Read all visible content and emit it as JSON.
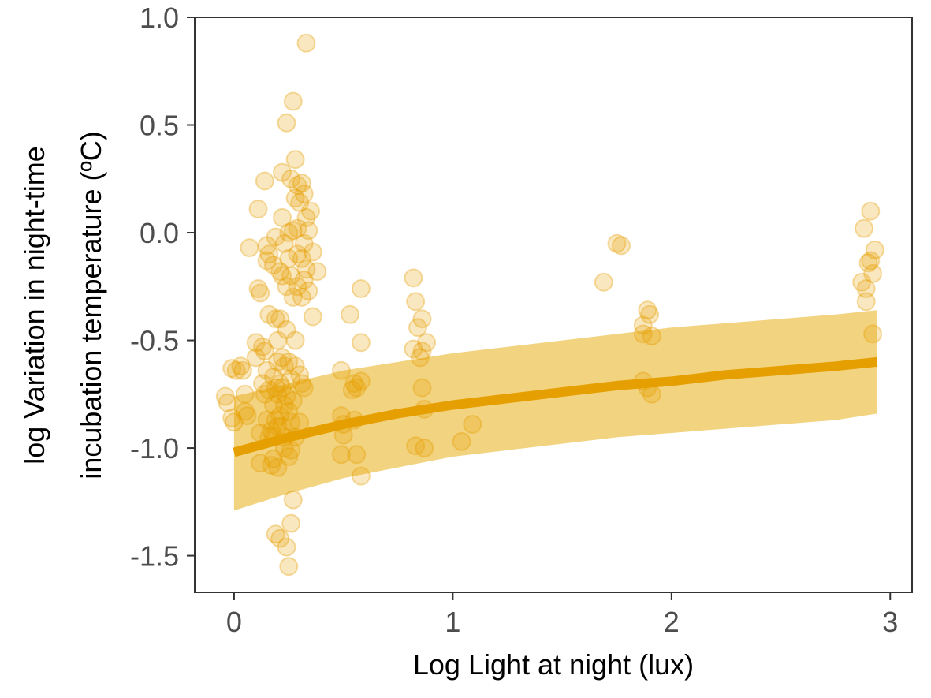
{
  "chart_data": {
    "type": "scatter",
    "xlabel": "Log Light at night (lux)",
    "ylabel_lines": [
      "log Variation in night-time",
      "incubation temperature (ºC)"
    ],
    "xlim": [
      -0.18,
      3.1
    ],
    "ylim": [
      -1.67,
      1.0
    ],
    "x_ticks": [
      0,
      1,
      2,
      3
    ],
    "x_tick_labels": [
      "0",
      "1",
      "2",
      "3"
    ],
    "y_ticks": [
      1.0,
      0.5,
      0.0,
      -0.5,
      -1.0,
      -1.5
    ],
    "y_tick_labels": [
      "1.0",
      "0.5",
      "0.0",
      "-0.5",
      "-1.0",
      "-1.5"
    ],
    "grid": false,
    "colors": {
      "point": "#E69F00",
      "ribbon": "#E6A800",
      "line": "#E69F00"
    },
    "points": [
      [
        -0.04,
        -0.76
      ],
      [
        -0.03,
        -0.79
      ],
      [
        -0.01,
        -0.86
      ],
      [
        0.0,
        -0.88
      ],
      [
        -0.01,
        -0.63
      ],
      [
        0.01,
        -0.64
      ],
      [
        0.03,
        -0.62
      ],
      [
        0.04,
        -0.64
      ],
      [
        0.05,
        -0.83
      ],
      [
        0.06,
        -0.85
      ],
      [
        0.05,
        -0.75
      ],
      [
        0.07,
        -0.07
      ],
      [
        0.1,
        -0.51
      ],
      [
        0.1,
        -0.58
      ],
      [
        0.11,
        0.11
      ],
      [
        0.11,
        -0.26
      ],
      [
        0.12,
        -0.28
      ],
      [
        0.12,
        -0.93
      ],
      [
        0.12,
        -1.07
      ],
      [
        0.13,
        -0.53
      ],
      [
        0.13,
        -0.7
      ],
      [
        0.14,
        0.24
      ],
      [
        0.14,
        -0.55
      ],
      [
        0.14,
        -0.75
      ],
      [
        0.15,
        -0.06
      ],
      [
        0.15,
        -0.13
      ],
      [
        0.15,
        -0.64
      ],
      [
        0.15,
        -0.87
      ],
      [
        0.16,
        -0.1
      ],
      [
        0.16,
        -0.38
      ],
      [
        0.16,
        -0.73
      ],
      [
        0.16,
        -0.95
      ],
      [
        0.17,
        -0.92
      ],
      [
        0.17,
        -1.08
      ],
      [
        0.18,
        -0.15
      ],
      [
        0.18,
        -0.67
      ],
      [
        0.18,
        -0.8
      ],
      [
        0.18,
        -0.95
      ],
      [
        0.18,
        -1.05
      ],
      [
        0.19,
        -0.02
      ],
      [
        0.19,
        -0.4
      ],
      [
        0.19,
        -0.72
      ],
      [
        0.19,
        -0.87
      ],
      [
        0.19,
        -1.4
      ],
      [
        0.2,
        -0.5
      ],
      [
        0.2,
        -0.6
      ],
      [
        0.2,
        -0.75
      ],
      [
        0.2,
        -0.9
      ],
      [
        0.2,
        -1.09
      ],
      [
        0.21,
        -0.18
      ],
      [
        0.21,
        -0.4
      ],
      [
        0.21,
        -0.7
      ],
      [
        0.21,
        -0.85
      ],
      [
        0.21,
        -1.42
      ],
      [
        0.22,
        0.28
      ],
      [
        0.22,
        0.07
      ],
      [
        0.22,
        -0.2
      ],
      [
        0.22,
        -0.58
      ],
      [
        0.22,
        -0.72
      ],
      [
        0.22,
        -0.9
      ],
      [
        0.23,
        -0.05
      ],
      [
        0.23,
        -0.62
      ],
      [
        0.23,
        -0.8
      ],
      [
        0.23,
        -0.95
      ],
      [
        0.23,
        -1.0
      ],
      [
        0.24,
        0.51
      ],
      [
        0.24,
        -0.25
      ],
      [
        0.24,
        -0.45
      ],
      [
        0.24,
        -0.76
      ],
      [
        0.24,
        -1.46
      ],
      [
        0.25,
        0.0
      ],
      [
        0.25,
        -0.12
      ],
      [
        0.25,
        -0.6
      ],
      [
        0.25,
        -0.83
      ],
      [
        0.25,
        -1.04
      ],
      [
        0.25,
        -1.55
      ],
      [
        0.26,
        0.25
      ],
      [
        0.26,
        -0.2
      ],
      [
        0.26,
        -0.68
      ],
      [
        0.26,
        -0.88
      ],
      [
        0.26,
        -1.01
      ],
      [
        0.26,
        -1.35
      ],
      [
        0.27,
        0.61
      ],
      [
        0.27,
        0.01
      ],
      [
        0.27,
        -0.3
      ],
      [
        0.27,
        -0.78
      ],
      [
        0.27,
        -1.24
      ],
      [
        0.28,
        0.34
      ],
      [
        0.28,
        0.16
      ],
      [
        0.28,
        -0.5
      ],
      [
        0.28,
        -0.62
      ],
      [
        0.28,
        -0.95
      ],
      [
        0.29,
        0.22
      ],
      [
        0.29,
        0.02
      ],
      [
        0.29,
        -0.1
      ],
      [
        0.29,
        -0.25
      ],
      [
        0.3,
        0.14
      ],
      [
        0.3,
        -0.66
      ],
      [
        0.3,
        -0.88
      ],
      [
        0.31,
        0.23
      ],
      [
        0.31,
        -0.12
      ],
      [
        0.31,
        -0.3
      ],
      [
        0.31,
        -0.7
      ],
      [
        0.32,
        0.18
      ],
      [
        0.32,
        -0.05
      ],
      [
        0.32,
        -0.22
      ],
      [
        0.32,
        -0.72
      ],
      [
        0.33,
        0.88
      ],
      [
        0.33,
        0.07
      ],
      [
        0.33,
        -0.17
      ],
      [
        0.34,
        0.01
      ],
      [
        0.34,
        -0.27
      ],
      [
        0.35,
        0.1
      ],
      [
        0.36,
        -0.09
      ],
      [
        0.36,
        -0.39
      ],
      [
        0.38,
        -0.18
      ],
      [
        0.49,
        -0.64
      ],
      [
        0.49,
        -0.85
      ],
      [
        0.49,
        -1.03
      ],
      [
        0.5,
        -0.94
      ],
      [
        0.5,
        -0.89
      ],
      [
        0.53,
        -0.38
      ],
      [
        0.54,
        -0.73
      ],
      [
        0.55,
        -0.7
      ],
      [
        0.55,
        -0.87
      ],
      [
        0.56,
        -0.72
      ],
      [
        0.56,
        -1.03
      ],
      [
        0.58,
        -0.26
      ],
      [
        0.58,
        -0.69
      ],
      [
        0.58,
        -0.51
      ],
      [
        0.58,
        -1.13
      ],
      [
        0.82,
        -0.21
      ],
      [
        0.82,
        -0.54
      ],
      [
        0.83,
        -0.32
      ],
      [
        0.83,
        -0.99
      ],
      [
        0.84,
        -0.44
      ],
      [
        0.85,
        -0.58
      ],
      [
        0.86,
        -0.4
      ],
      [
        0.86,
        -0.72
      ],
      [
        0.86,
        -0.55
      ],
      [
        0.87,
        -0.82
      ],
      [
        0.87,
        -1.0
      ],
      [
        0.88,
        -0.51
      ],
      [
        1.04,
        -0.97
      ],
      [
        1.09,
        -0.89
      ],
      [
        1.69,
        -0.23
      ],
      [
        1.75,
        -0.05
      ],
      [
        1.77,
        -0.06
      ],
      [
        1.87,
        -0.43
      ],
      [
        1.87,
        -0.47
      ],
      [
        1.87,
        -0.69
      ],
      [
        1.89,
        -0.72
      ],
      [
        1.89,
        -0.36
      ],
      [
        1.9,
        -0.38
      ],
      [
        1.91,
        -0.48
      ],
      [
        1.91,
        -0.75
      ],
      [
        2.87,
        -0.23
      ],
      [
        2.88,
        0.02
      ],
      [
        2.89,
        -0.26
      ],
      [
        2.89,
        -0.32
      ],
      [
        2.9,
        -0.14
      ],
      [
        2.91,
        0.1
      ],
      [
        2.91,
        -0.13
      ],
      [
        2.92,
        -0.19
      ],
      [
        2.92,
        -0.47
      ],
      [
        2.93,
        -0.08
      ]
    ],
    "fit_line": [
      [
        0.0,
        -1.02
      ],
      [
        0.25,
        -0.95
      ],
      [
        0.5,
        -0.89
      ],
      [
        0.75,
        -0.84
      ],
      [
        1.0,
        -0.8
      ],
      [
        1.25,
        -0.77
      ],
      [
        1.5,
        -0.74
      ],
      [
        1.75,
        -0.71
      ],
      [
        2.0,
        -0.69
      ],
      [
        2.25,
        -0.66
      ],
      [
        2.5,
        -0.64
      ],
      [
        2.75,
        -0.62
      ],
      [
        2.94,
        -0.6
      ]
    ],
    "fit_band_upper": [
      [
        0.0,
        -0.76
      ],
      [
        0.25,
        -0.7
      ],
      [
        0.5,
        -0.64
      ],
      [
        0.75,
        -0.6
      ],
      [
        1.0,
        -0.56
      ],
      [
        1.25,
        -0.53
      ],
      [
        1.5,
        -0.5
      ],
      [
        1.75,
        -0.47
      ],
      [
        2.0,
        -0.44
      ],
      [
        2.25,
        -0.42
      ],
      [
        2.5,
        -0.4
      ],
      [
        2.75,
        -0.38
      ],
      [
        2.94,
        -0.36
      ]
    ],
    "fit_band_lower": [
      [
        0.0,
        -1.29
      ],
      [
        0.25,
        -1.21
      ],
      [
        0.5,
        -1.14
      ],
      [
        0.75,
        -1.09
      ],
      [
        1.0,
        -1.04
      ],
      [
        1.25,
        -1.01
      ],
      [
        1.5,
        -0.98
      ],
      [
        1.75,
        -0.95
      ],
      [
        2.0,
        -0.93
      ],
      [
        2.25,
        -0.91
      ],
      [
        2.5,
        -0.89
      ],
      [
        2.75,
        -0.87
      ],
      [
        2.94,
        -0.84
      ]
    ]
  }
}
